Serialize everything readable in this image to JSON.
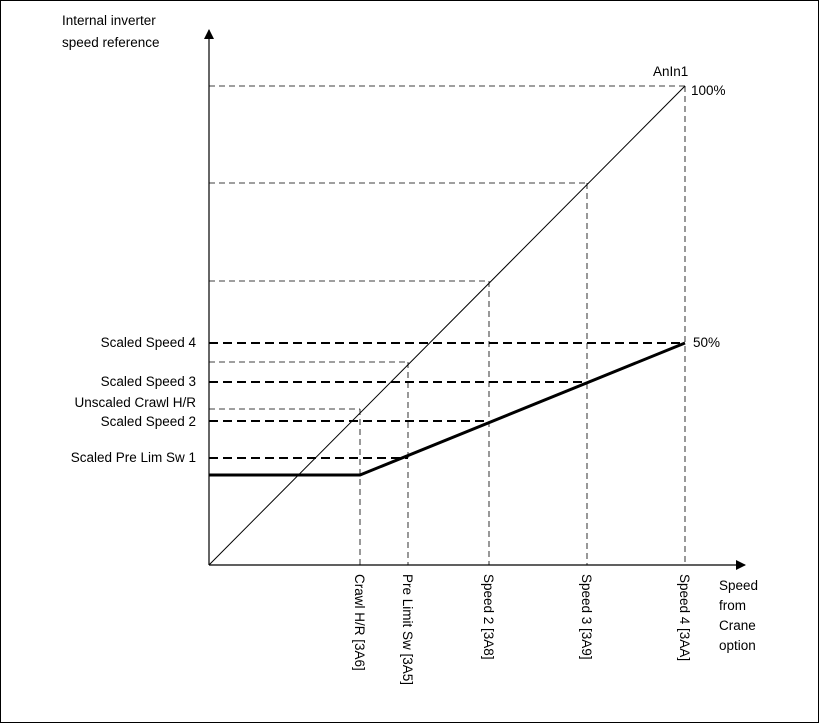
{
  "y_axis_label": [
    "Internal inverter",
    "speed reference"
  ],
  "x_axis_label": [
    "Speed",
    "from",
    "Crane",
    "option"
  ],
  "diagonal_label": "AnIn1",
  "percent_100": "100%",
  "percent_50": "50%",
  "y_labels": [
    "Scaled Speed 4",
    "Scaled Speed 3",
    "Unscaled Crawl H/R",
    "Scaled Speed 2",
    "Scaled Pre Lim Sw 1"
  ],
  "x_labels": [
    "Crawl H/R [3A6]",
    "Pre Limit Sw [3A5]",
    "Speed 2 [3A8]",
    "Speed 3 [3A9]",
    "Speed 4 [3AA]"
  ]
}
